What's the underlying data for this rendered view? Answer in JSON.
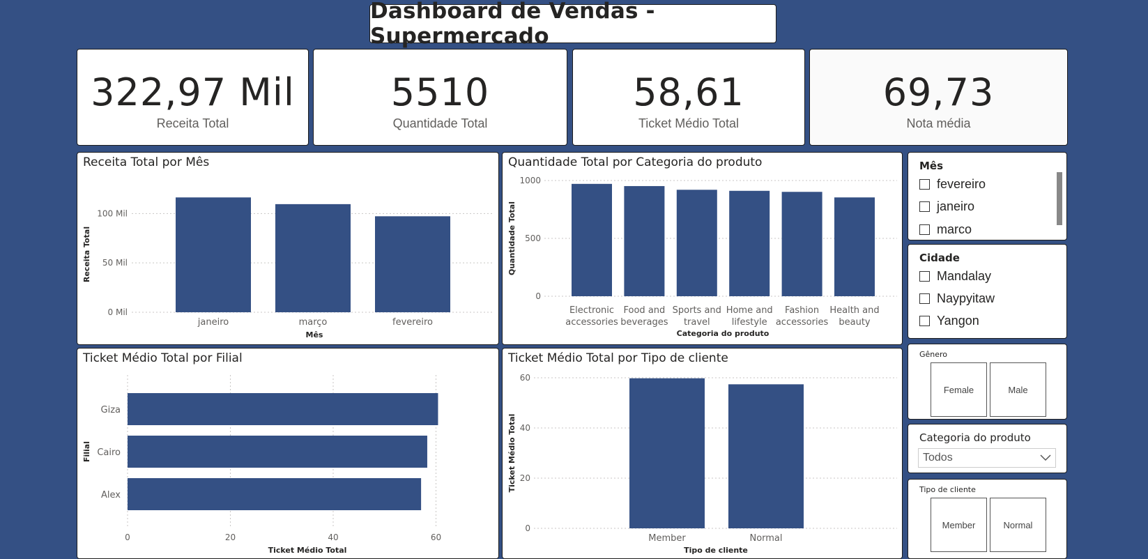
{
  "header": {
    "title": "Dashboard de Vendas - Supermercado"
  },
  "kpis": [
    {
      "value": "322,97 Mil",
      "label": "Receita Total"
    },
    {
      "value": "5510",
      "label": "Quantidade Total"
    },
    {
      "value": "58,61",
      "label": "Ticket Médio Total"
    },
    {
      "value": "69,73",
      "label": "Nota média"
    }
  ],
  "colors": {
    "bar": "#345084",
    "background": "#345084",
    "grid": "#c8c6c4"
  },
  "charts": {
    "receita_mes": {
      "title": "Receita Total por Mês"
    },
    "qtd_categoria": {
      "title": "Quantidade Total por Categoria do produto"
    },
    "ticket_filial": {
      "title": "Ticket Médio Total por Filial"
    },
    "ticket_cliente": {
      "title": "Ticket Médio Total por Tipo de cliente"
    }
  },
  "chart_data": [
    {
      "type": "bar",
      "title": "Receita Total por Mês",
      "categories": [
        "janeiro",
        "março",
        "fevereiro"
      ],
      "values": [
        116.3,
        109.5,
        97.2
      ],
      "xlabel": "Mês",
      "ylabel": "Receita Total",
      "yticks": [
        "0 Mil",
        "50 Mil",
        "100 Mil"
      ],
      "ylim": [
        0,
        120
      ],
      "grid": true
    },
    {
      "type": "bar",
      "title": "Quantidade Total por Categoria do produto",
      "categories": [
        [
          "Electronic",
          "accessories"
        ],
        [
          "Food and",
          "beverages"
        ],
        [
          "Sports and",
          "travel"
        ],
        [
          "Home and",
          "lifestyle"
        ],
        [
          "Fashion",
          "accessories"
        ],
        [
          "Health and",
          "beauty"
        ]
      ],
      "values": [
        971,
        952,
        920,
        911,
        902,
        854
      ],
      "xlabel": "Categoria do produto",
      "ylabel": "Quantidade Total",
      "yticks": [
        "0",
        "500",
        "1000"
      ],
      "ylim": [
        0,
        1000
      ],
      "grid": true
    },
    {
      "type": "bar",
      "orientation": "horizontal",
      "title": "Ticket Médio Total por Filial",
      "categories": [
        "Giza",
        "Cairo",
        "Alex"
      ],
      "values": [
        60.4,
        58.3,
        57.1
      ],
      "xlabel": "Ticket Médio Total",
      "ylabel": "Filial",
      "xticks": [
        "0",
        "20",
        "40",
        "60"
      ],
      "xlim": [
        0,
        64
      ],
      "grid": true
    },
    {
      "type": "bar",
      "title": "Ticket Médio Total por Tipo de cliente",
      "categories": [
        "Member",
        "Normal"
      ],
      "values": [
        59.8,
        57.4
      ],
      "xlabel": "Tipo de cliente",
      "ylabel": "Ticket Médio Total",
      "yticks": [
        "0",
        "20",
        "40",
        "60"
      ],
      "ylim": [
        0,
        60
      ],
      "grid": true
    }
  ],
  "slicers": {
    "mes": {
      "title": "Mês",
      "options": [
        "fevereiro",
        "janeiro",
        "marco"
      ]
    },
    "cidade": {
      "title": "Cidade",
      "options": [
        "Mandalay",
        "Naypyitaw",
        "Yangon"
      ]
    },
    "genero": {
      "title": "Gênero",
      "options": [
        "Female",
        "Male"
      ]
    },
    "categoria": {
      "title": "Categoria do produto",
      "selected": "Todos",
      "icon": "chevron-down-icon"
    },
    "tipo_cliente": {
      "title": "Tipo de cliente",
      "options": [
        "Member",
        "Normal"
      ]
    }
  }
}
